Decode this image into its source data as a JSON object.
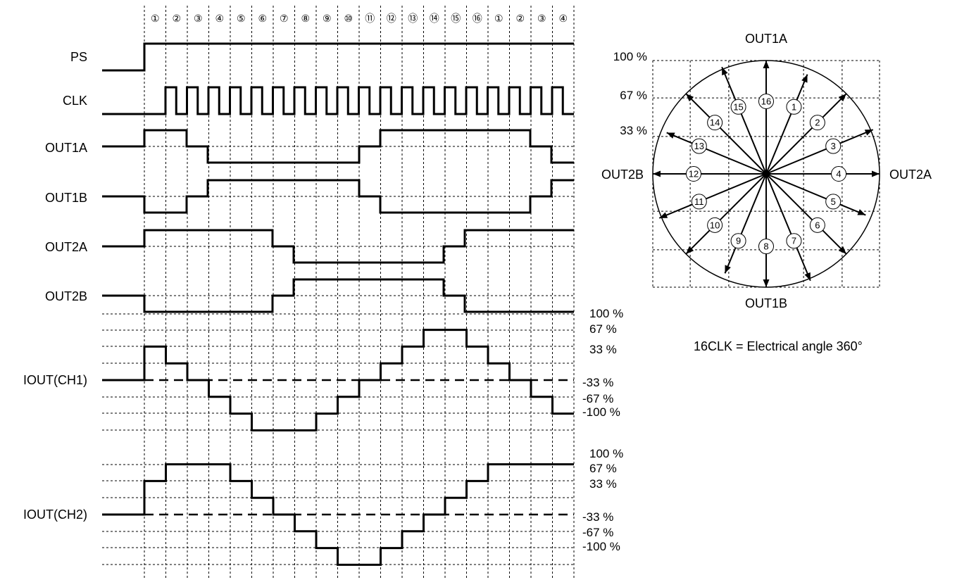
{
  "step_labels": [
    "①",
    "②",
    "③",
    "④",
    "⑤",
    "⑥",
    "⑦",
    "⑧",
    "⑨",
    "⑩",
    "⑪",
    "⑫",
    "⑬",
    "⑭",
    "⑮",
    "⑯",
    "①",
    "②",
    "③",
    "④"
  ],
  "signals": [
    {
      "name": "PS",
      "label": "PS"
    },
    {
      "name": "CLK",
      "label": "CLK"
    },
    {
      "name": "OUT1A",
      "label": "OUT1A"
    },
    {
      "name": "OUT1B",
      "label": "OUT1B"
    },
    {
      "name": "OUT2A",
      "label": "OUT2A"
    },
    {
      "name": "OUT2B",
      "label": "OUT2B"
    },
    {
      "name": "IOUT-CH1",
      "label": "IOUT(CH1)"
    },
    {
      "name": "IOUT-CH2",
      "label": "IOUT(CH2)"
    }
  ],
  "current_levels": {
    "ch1": [
      "100 %",
      "67 %",
      "33 %",
      "-33 %",
      "-67 %",
      "-100 %"
    ],
    "ch2": [
      "100 %",
      "67 %",
      "33 %",
      "-33 %",
      "-67 %",
      "-100 %"
    ]
  },
  "current_steps": {
    "ch1": [
      2,
      1,
      0,
      -1,
      -2,
      -3,
      -3,
      -3,
      -2,
      -1,
      0,
      1,
      2,
      3,
      3,
      2,
      1,
      0,
      -1,
      -2
    ],
    "ch2": [
      2,
      3,
      3,
      3,
      2,
      1,
      0,
      -1,
      -2,
      -3,
      -3,
      -2,
      -1,
      0,
      1,
      2,
      3,
      3,
      3,
      3
    ]
  },
  "phase_vector_diagram": {
    "axis_labels": {
      "top": "OUT1A",
      "bottom": "OUT1B",
      "right": "OUT2A",
      "left": "OUT2B"
    },
    "percent_labels": [
      "100 %",
      "67 %",
      "33 %"
    ],
    "vector_labels": [
      "1",
      "2",
      "3",
      "4",
      "5",
      "6",
      "7",
      "8",
      "9",
      "10",
      "11",
      "12",
      "13",
      "14",
      "15",
      "16"
    ]
  },
  "note": "16CLK = Electrical angle 360°"
}
